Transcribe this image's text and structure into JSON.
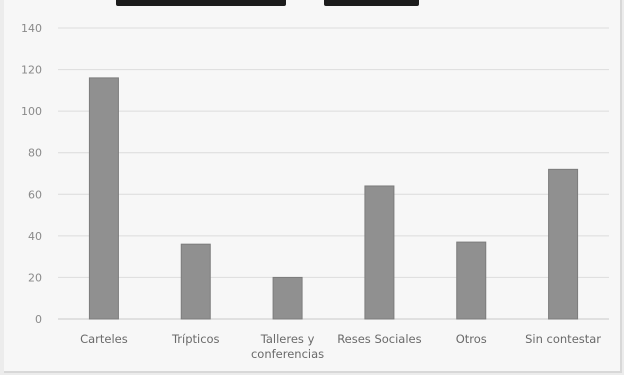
{
  "chart_data": {
    "type": "bar",
    "title": "",
    "xlabel": "",
    "ylabel": "",
    "categories": [
      [
        "Carteles"
      ],
      [
        "Trípticos"
      ],
      [
        "Talleres y",
        "conferencias"
      ],
      [
        "Reses Sociales"
      ],
      [
        "Otros"
      ],
      [
        "Sin contestar"
      ]
    ],
    "values": [
      116,
      36,
      20,
      64,
      37,
      72
    ],
    "ylim": [
      0,
      140
    ],
    "yticks": [
      0,
      20,
      40,
      60,
      80,
      100,
      120,
      140
    ],
    "grid": true,
    "legend": "none",
    "colors": {
      "bar": "#909090",
      "bar_edge": "#7c7c7c",
      "grid": "#dcdcdc",
      "background": "#f7f7f7"
    }
  }
}
